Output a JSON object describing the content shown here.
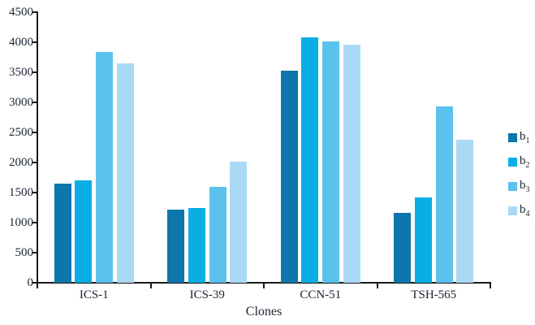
{
  "chart_data": {
    "type": "bar",
    "title": "",
    "xlabel": "Clones",
    "ylabel": "",
    "ylim": [
      0,
      4500
    ],
    "ytick_step": 500,
    "yticks": [
      0,
      500,
      1000,
      1500,
      2000,
      2500,
      3000,
      3500,
      4000,
      4500
    ],
    "grid": false,
    "legend_position": "right",
    "categories": [
      "ICS-1",
      "ICS-39",
      "CCN-51",
      "TSH-565"
    ],
    "series": [
      {
        "name": "b1",
        "label_base": "b",
        "label_sub": "1",
        "color": "#0d76ab",
        "values": [
          1650,
          1210,
          3530,
          1160
        ]
      },
      {
        "name": "b2",
        "label_base": "b",
        "label_sub": "2",
        "color": "#0aaee4",
        "values": [
          1700,
          1250,
          4080,
          1420
        ]
      },
      {
        "name": "b3",
        "label_base": "b",
        "label_sub": "3",
        "color": "#5bc2ee",
        "values": [
          3840,
          1600,
          4020,
          2930
        ]
      },
      {
        "name": "b4",
        "label_base": "b",
        "label_sub": "4",
        "color": "#aad9f5",
        "values": [
          3650,
          2020,
          3960,
          2380
        ]
      }
    ]
  },
  "colors": {
    "axis": "#1a1a1a",
    "text": "#1a2433",
    "background": "#ffffff"
  }
}
